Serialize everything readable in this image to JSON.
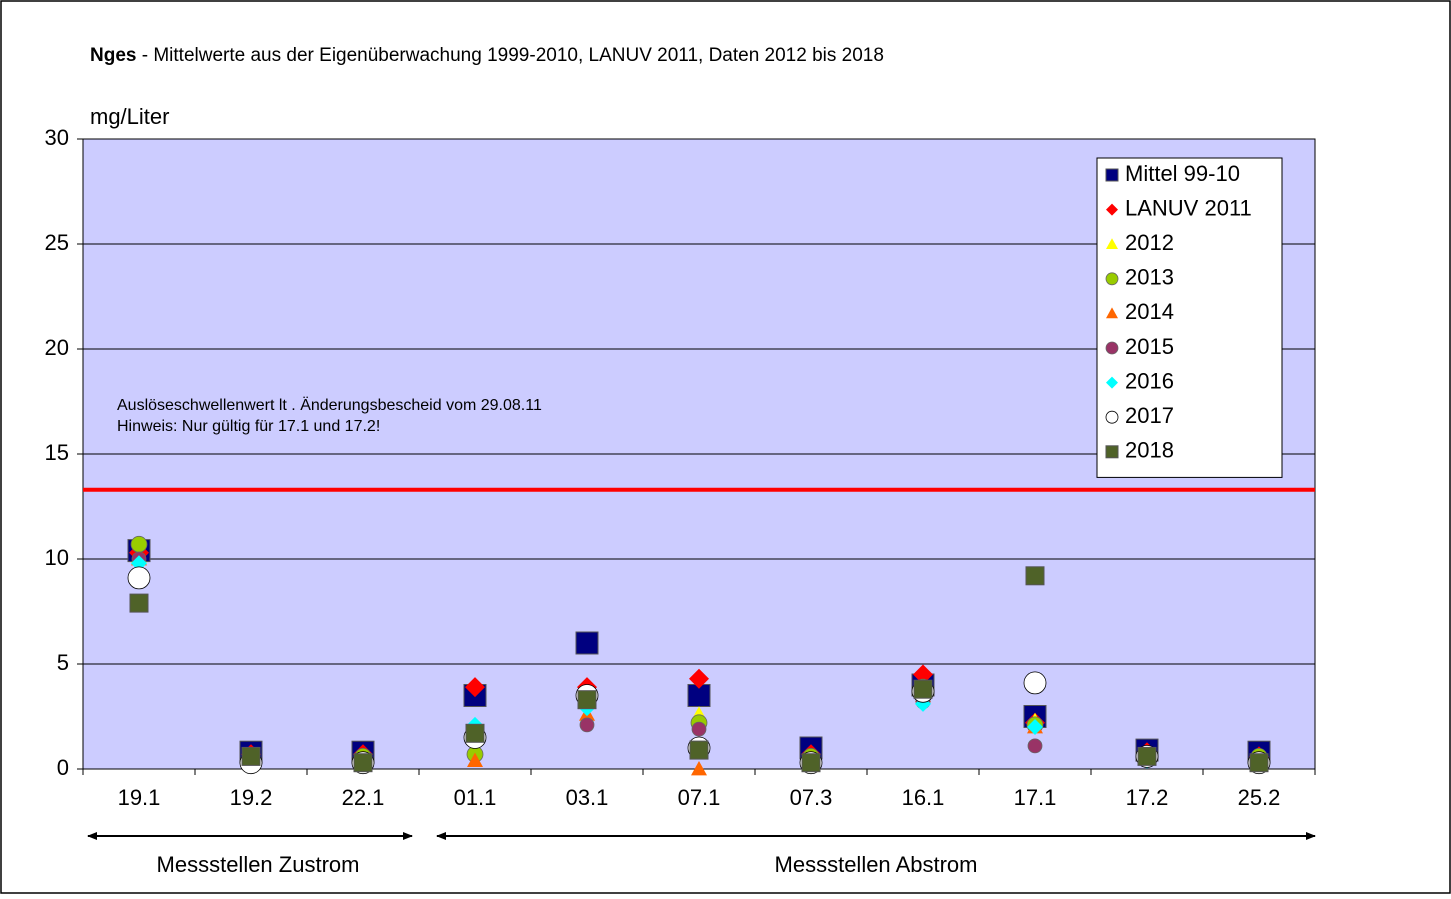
{
  "chart_data": {
    "type": "scatter",
    "title_bold": "Nges",
    "title": " - Mittelwerte aus der Eigenüberwachung 1999-2010, LANUV 2011, Daten 2012 bis 2018",
    "y_label": "mg/Liter",
    "annotation": [
      "Auslöseschwellenwert lt . Änderungsbescheid vom 29.08.11",
      "Hinweis: Nur gültig für 17.1 und 17.2!"
    ],
    "threshold": {
      "value": 13.3,
      "color": "#ff0000"
    },
    "categories": [
      "19.1",
      "19.2",
      "22.1",
      "01.1",
      "03.1",
      "07.1",
      "07.3",
      "16.1",
      "17.1",
      "17.2",
      "25.2"
    ],
    "groups": [
      "Messstellen Zustrom",
      "Messstellen Abstrom"
    ],
    "ylim": [
      0,
      30
    ],
    "yticks": [
      0,
      5,
      10,
      15,
      20,
      25,
      30
    ],
    "grid": true,
    "background": "#ccccff",
    "series": [
      {
        "name": "Mittel 99-10",
        "color": "#000080",
        "marker": "square",
        "size": 22,
        "values": [
          10.4,
          0.8,
          0.8,
          3.5,
          6.0,
          3.5,
          1.0,
          4.0,
          2.5,
          0.9,
          0.8
        ]
      },
      {
        "name": "LANUV 2011",
        "color": "#ff0000",
        "marker": "diamond",
        "size": 20,
        "values": [
          10.3,
          0.7,
          0.7,
          3.9,
          3.9,
          4.3,
          0.7,
          4.5,
          2.2,
          0.8,
          0.6
        ]
      },
      {
        "name": "2012",
        "color": "#ffff00",
        "marker": "triangle",
        "size": 16,
        "values": [
          10.1,
          0.6,
          0.6,
          1.8,
          3.6,
          2.6,
          0.6,
          3.8,
          2.3,
          0.6,
          0.6
        ]
      },
      {
        "name": "2013",
        "color": "#99cc00",
        "marker": "circle",
        "size": 16,
        "values": [
          10.7,
          0.6,
          0.6,
          0.7,
          3.4,
          2.2,
          0.6,
          3.9,
          2.1,
          0.7,
          0.6
        ]
      },
      {
        "name": "2014",
        "color": "#ff6600",
        "marker": "triangle",
        "size": 16,
        "values": [
          10.0,
          0.5,
          0.5,
          0.4,
          2.6,
          0.0,
          0.5,
          3.5,
          2.0,
          0.5,
          0.5
        ]
      },
      {
        "name": "2015",
        "color": "#993366",
        "marker": "circle",
        "size": 14,
        "values": [
          10.0,
          0.4,
          0.4,
          1.5,
          2.1,
          1.9,
          0.4,
          3.2,
          1.1,
          0.4,
          0.4
        ]
      },
      {
        "name": "2016",
        "color": "#00ffff",
        "marker": "diamond",
        "size": 16,
        "values": [
          9.8,
          0.4,
          0.4,
          2.1,
          2.9,
          1.1,
          0.4,
          3.1,
          2.0,
          0.4,
          0.4
        ]
      },
      {
        "name": "2017",
        "color": "#ffffff",
        "marker": "circle",
        "size": 22,
        "values": [
          9.1,
          0.3,
          0.3,
          1.5,
          3.5,
          1.0,
          0.3,
          3.7,
          4.1,
          0.6,
          0.3
        ]
      },
      {
        "name": "2018",
        "color": "#4f6228",
        "marker": "square",
        "size": 18,
        "values": [
          7.9,
          0.6,
          0.3,
          1.7,
          3.3,
          0.9,
          0.3,
          3.8,
          9.2,
          0.6,
          0.3
        ]
      }
    ]
  }
}
